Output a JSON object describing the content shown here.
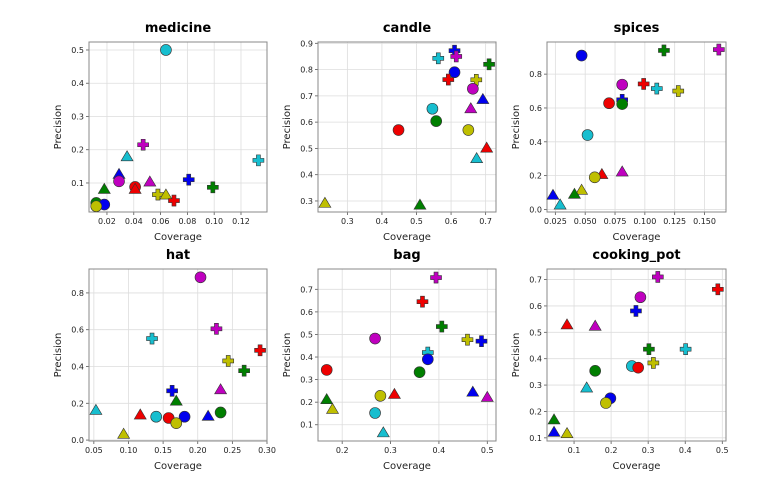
{
  "chart_data": [
    {
      "type": "scatter",
      "title": "medicine",
      "xlabel": "Coverage",
      "ylabel": "Precision",
      "xlim": [
        0.0066,
        0.1394
      ],
      "ylim": [
        0.0127,
        0.524
      ],
      "xticks": [
        0.02,
        0.04,
        0.06,
        0.08,
        0.1,
        0.12
      ],
      "xtick_labels": [
        "0.02",
        "0.04",
        "0.06",
        "0.08",
        "0.10",
        "0.12"
      ],
      "yticks": [
        0.1,
        0.2,
        0.3,
        0.4,
        0.5
      ],
      "ytick_labels": [
        "0.1",
        "0.2",
        "0.3",
        "0.4",
        "0.5"
      ],
      "grid": true,
      "points": [
        {
          "x": 0.064,
          "y": 0.5,
          "color": "#17becf",
          "shape": "circle"
        },
        {
          "x": 0.047,
          "y": 0.215,
          "color": "#bf00bf",
          "shape": "plus"
        },
        {
          "x": 0.035,
          "y": 0.178,
          "color": "#17becf",
          "shape": "triangle"
        },
        {
          "x": 0.133,
          "y": 0.168,
          "color": "#17becf",
          "shape": "plus"
        },
        {
          "x": 0.029,
          "y": 0.125,
          "color": "#0000ee",
          "shape": "triangle"
        },
        {
          "x": 0.081,
          "y": 0.11,
          "color": "#0000ee",
          "shape": "plus"
        },
        {
          "x": 0.029,
          "y": 0.105,
          "color": "#bf00bf",
          "shape": "circle"
        },
        {
          "x": 0.052,
          "y": 0.102,
          "color": "#bf00bf",
          "shape": "triangle"
        },
        {
          "x": 0.099,
          "y": 0.087,
          "color": "#007f00",
          "shape": "plus"
        },
        {
          "x": 0.041,
          "y": 0.088,
          "color": "#ee0000",
          "shape": "circle"
        },
        {
          "x": 0.041,
          "y": 0.08,
          "color": "#ee0000",
          "shape": "triangle"
        },
        {
          "x": 0.018,
          "y": 0.08,
          "color": "#007f00",
          "shape": "triangle"
        },
        {
          "x": 0.058,
          "y": 0.065,
          "color": "#bfbf00",
          "shape": "plus"
        },
        {
          "x": 0.064,
          "y": 0.063,
          "color": "#bfbf00",
          "shape": "triangle"
        },
        {
          "x": 0.07,
          "y": 0.047,
          "color": "#ee0000",
          "shape": "plus"
        },
        {
          "x": 0.012,
          "y": 0.04,
          "color": "#007f00",
          "shape": "circle"
        },
        {
          "x": 0.018,
          "y": 0.035,
          "color": "#0000ee",
          "shape": "circle"
        },
        {
          "x": 0.012,
          "y": 0.03,
          "color": "#bfbf00",
          "shape": "circle"
        }
      ]
    },
    {
      "type": "scatter",
      "title": "candle",
      "xlabel": "Coverage",
      "ylabel": "Precision",
      "xlim": [
        0.215,
        0.73
      ],
      "ylim": [
        0.258,
        0.905
      ],
      "xticks": [
        0.3,
        0.4,
        0.5,
        0.6,
        0.7
      ],
      "xtick_labels": [
        "0.3",
        "0.4",
        "0.5",
        "0.6",
        "0.7"
      ],
      "yticks": [
        0.3,
        0.4,
        0.5,
        0.6,
        0.7,
        0.8,
        0.9
      ],
      "ytick_labels": [
        "0.3",
        "0.4",
        "0.5",
        "0.6",
        "0.7",
        "0.8",
        "0.9"
      ],
      "grid": true,
      "points": [
        {
          "x": 0.61,
          "y": 0.872,
          "color": "#0000ee",
          "shape": "plus"
        },
        {
          "x": 0.615,
          "y": 0.85,
          "color": "#bf00bf",
          "shape": "plus"
        },
        {
          "x": 0.563,
          "y": 0.843,
          "color": "#17becf",
          "shape": "plus"
        },
        {
          "x": 0.71,
          "y": 0.82,
          "color": "#007f00",
          "shape": "plus"
        },
        {
          "x": 0.61,
          "y": 0.79,
          "color": "#0000ee",
          "shape": "circle"
        },
        {
          "x": 0.592,
          "y": 0.762,
          "color": "#ee0000",
          "shape": "plus"
        },
        {
          "x": 0.673,
          "y": 0.761,
          "color": "#bfbf00",
          "shape": "plus"
        },
        {
          "x": 0.663,
          "y": 0.727,
          "color": "#bf00bf",
          "shape": "circle"
        },
        {
          "x": 0.692,
          "y": 0.685,
          "color": "#0000ee",
          "shape": "triangle"
        },
        {
          "x": 0.546,
          "y": 0.651,
          "color": "#17becf",
          "shape": "circle"
        },
        {
          "x": 0.657,
          "y": 0.65,
          "color": "#bf00bf",
          "shape": "triangle"
        },
        {
          "x": 0.557,
          "y": 0.604,
          "color": "#007f00",
          "shape": "circle"
        },
        {
          "x": 0.448,
          "y": 0.57,
          "color": "#ee0000",
          "shape": "circle"
        },
        {
          "x": 0.65,
          "y": 0.57,
          "color": "#bfbf00",
          "shape": "circle"
        },
        {
          "x": 0.703,
          "y": 0.5,
          "color": "#ee0000",
          "shape": "triangle"
        },
        {
          "x": 0.674,
          "y": 0.46,
          "color": "#17becf",
          "shape": "triangle"
        },
        {
          "x": 0.235,
          "y": 0.29,
          "color": "#bfbf00",
          "shape": "triangle"
        },
        {
          "x": 0.51,
          "y": 0.283,
          "color": "#007f00",
          "shape": "triangle"
        }
      ]
    },
    {
      "type": "scatter",
      "title": "spices",
      "xlabel": "Coverage",
      "ylabel": "Precision",
      "xlim": [
        0.018,
        0.168
      ],
      "ylim": [
        -0.015,
        0.99
      ],
      "xticks": [
        0.025,
        0.05,
        0.075,
        0.1,
        0.125,
        0.15
      ],
      "xtick_labels": [
        "0.025",
        "0.050",
        "0.075",
        "0.100",
        "0.125",
        "0.150"
      ],
      "yticks": [
        0.0,
        0.2,
        0.4,
        0.6,
        0.8
      ],
      "ytick_labels": [
        "0.0",
        "0.2",
        "0.4",
        "0.6",
        "0.8"
      ],
      "grid": true,
      "points": [
        {
          "x": 0.162,
          "y": 0.945,
          "color": "#bf00bf",
          "shape": "plus"
        },
        {
          "x": 0.116,
          "y": 0.94,
          "color": "#007f00",
          "shape": "plus"
        },
        {
          "x": 0.047,
          "y": 0.91,
          "color": "#0000ee",
          "shape": "circle"
        },
        {
          "x": 0.099,
          "y": 0.742,
          "color": "#ee0000",
          "shape": "plus"
        },
        {
          "x": 0.081,
          "y": 0.738,
          "color": "#bf00bf",
          "shape": "circle"
        },
        {
          "x": 0.11,
          "y": 0.715,
          "color": "#17becf",
          "shape": "plus"
        },
        {
          "x": 0.128,
          "y": 0.7,
          "color": "#bfbf00",
          "shape": "plus"
        },
        {
          "x": 0.081,
          "y": 0.648,
          "color": "#0000ee",
          "shape": "plus"
        },
        {
          "x": 0.07,
          "y": 0.628,
          "color": "#ee0000",
          "shape": "circle"
        },
        {
          "x": 0.081,
          "y": 0.623,
          "color": "#007f00",
          "shape": "circle"
        },
        {
          "x": 0.052,
          "y": 0.44,
          "color": "#17becf",
          "shape": "circle"
        },
        {
          "x": 0.081,
          "y": 0.22,
          "color": "#bf00bf",
          "shape": "triangle"
        },
        {
          "x": 0.064,
          "y": 0.205,
          "color": "#ee0000",
          "shape": "triangle"
        },
        {
          "x": 0.058,
          "y": 0.19,
          "color": "#bfbf00",
          "shape": "circle"
        },
        {
          "x": 0.047,
          "y": 0.112,
          "color": "#bfbf00",
          "shape": "triangle"
        },
        {
          "x": 0.041,
          "y": 0.088,
          "color": "#007f00",
          "shape": "triangle"
        },
        {
          "x": 0.023,
          "y": 0.082,
          "color": "#0000ee",
          "shape": "triangle"
        },
        {
          "x": 0.029,
          "y": 0.025,
          "color": "#17becf",
          "shape": "triangle"
        }
      ]
    },
    {
      "type": "scatter",
      "title": "hat",
      "xlabel": "Coverage",
      "ylabel": "Precision",
      "xlim": [
        0.043,
        0.3
      ],
      "ylim": [
        -0.005,
        0.93
      ],
      "xticks": [
        0.05,
        0.1,
        0.15,
        0.2,
        0.25,
        0.3
      ],
      "xtick_labels": [
        "0.05",
        "0.10",
        "0.15",
        "0.20",
        "0.25",
        "0.30"
      ],
      "yticks": [
        0.0,
        0.2,
        0.4,
        0.6,
        0.8
      ],
      "ytick_labels": [
        "0.0",
        "0.2",
        "0.4",
        "0.6",
        "0.8"
      ],
      "grid": true,
      "points": [
        {
          "x": 0.204,
          "y": 0.885,
          "color": "#bf00bf",
          "shape": "circle"
        },
        {
          "x": 0.227,
          "y": 0.605,
          "color": "#bf00bf",
          "shape": "plus"
        },
        {
          "x": 0.134,
          "y": 0.552,
          "color": "#17becf",
          "shape": "plus"
        },
        {
          "x": 0.29,
          "y": 0.488,
          "color": "#ee0000",
          "shape": "plus"
        },
        {
          "x": 0.244,
          "y": 0.43,
          "color": "#bfbf00",
          "shape": "plus"
        },
        {
          "x": 0.267,
          "y": 0.377,
          "color": "#007f00",
          "shape": "plus"
        },
        {
          "x": 0.233,
          "y": 0.272,
          "color": "#bf00bf",
          "shape": "triangle"
        },
        {
          "x": 0.163,
          "y": 0.268,
          "color": "#0000ee",
          "shape": "plus"
        },
        {
          "x": 0.169,
          "y": 0.21,
          "color": "#007f00",
          "shape": "triangle"
        },
        {
          "x": 0.053,
          "y": 0.16,
          "color": "#17becf",
          "shape": "triangle"
        },
        {
          "x": 0.233,
          "y": 0.15,
          "color": "#007f00",
          "shape": "circle"
        },
        {
          "x": 0.117,
          "y": 0.135,
          "color": "#ee0000",
          "shape": "triangle"
        },
        {
          "x": 0.215,
          "y": 0.128,
          "color": "#0000ee",
          "shape": "triangle"
        },
        {
          "x": 0.14,
          "y": 0.127,
          "color": "#17becf",
          "shape": "circle"
        },
        {
          "x": 0.181,
          "y": 0.127,
          "color": "#0000ee",
          "shape": "circle"
        },
        {
          "x": 0.158,
          "y": 0.12,
          "color": "#ee0000",
          "shape": "circle"
        },
        {
          "x": 0.169,
          "y": 0.092,
          "color": "#bfbf00",
          "shape": "circle"
        },
        {
          "x": 0.093,
          "y": 0.03,
          "color": "#bfbf00",
          "shape": "triangle"
        }
      ]
    },
    {
      "type": "scatter",
      "title": "bag",
      "xlabel": "Coverage",
      "ylabel": "Precision",
      "xlim": [
        0.15,
        0.518
      ],
      "ylim": [
        0.028,
        0.79
      ],
      "xticks": [
        0.2,
        0.3,
        0.4,
        0.5
      ],
      "xtick_labels": [
        "0.2",
        "0.3",
        "0.4",
        "0.5"
      ],
      "yticks": [
        0.1,
        0.2,
        0.3,
        0.4,
        0.5,
        0.6,
        0.7
      ],
      "ytick_labels": [
        "0.1",
        "0.2",
        "0.3",
        "0.4",
        "0.5",
        "0.6",
        "0.7"
      ],
      "grid": true,
      "points": [
        {
          "x": 0.394,
          "y": 0.752,
          "color": "#bf00bf",
          "shape": "plus"
        },
        {
          "x": 0.366,
          "y": 0.645,
          "color": "#ee0000",
          "shape": "plus"
        },
        {
          "x": 0.406,
          "y": 0.535,
          "color": "#007f00",
          "shape": "plus"
        },
        {
          "x": 0.268,
          "y": 0.482,
          "color": "#bf00bf",
          "shape": "circle"
        },
        {
          "x": 0.459,
          "y": 0.477,
          "color": "#bfbf00",
          "shape": "plus"
        },
        {
          "x": 0.488,
          "y": 0.47,
          "color": "#0000ee",
          "shape": "plus"
        },
        {
          "x": 0.377,
          "y": 0.42,
          "color": "#17becf",
          "shape": "plus"
        },
        {
          "x": 0.377,
          "y": 0.39,
          "color": "#0000ee",
          "shape": "circle"
        },
        {
          "x": 0.168,
          "y": 0.343,
          "color": "#ee0000",
          "shape": "circle"
        },
        {
          "x": 0.36,
          "y": 0.333,
          "color": "#007f00",
          "shape": "circle"
        },
        {
          "x": 0.47,
          "y": 0.243,
          "color": "#0000ee",
          "shape": "triangle"
        },
        {
          "x": 0.308,
          "y": 0.233,
          "color": "#ee0000",
          "shape": "triangle"
        },
        {
          "x": 0.279,
          "y": 0.228,
          "color": "#bfbf00",
          "shape": "circle"
        },
        {
          "x": 0.5,
          "y": 0.22,
          "color": "#bf00bf",
          "shape": "triangle"
        },
        {
          "x": 0.168,
          "y": 0.21,
          "color": "#007f00",
          "shape": "triangle"
        },
        {
          "x": 0.18,
          "y": 0.167,
          "color": "#bfbf00",
          "shape": "triangle"
        },
        {
          "x": 0.268,
          "y": 0.152,
          "color": "#17becf",
          "shape": "circle"
        },
        {
          "x": 0.285,
          "y": 0.063,
          "color": "#17becf",
          "shape": "triangle"
        }
      ]
    },
    {
      "type": "scatter",
      "title": "cooking_pot",
      "xlabel": "Coverage",
      "ylabel": "Precision",
      "xlim": [
        0.027,
        0.51
      ],
      "ylim": [
        0.088,
        0.74
      ],
      "xticks": [
        0.1,
        0.2,
        0.3,
        0.4,
        0.5
      ],
      "xtick_labels": [
        "0.1",
        "0.2",
        "0.3",
        "0.4",
        "0.5"
      ],
      "yticks": [
        0.1,
        0.2,
        0.3,
        0.4,
        0.5,
        0.6,
        0.7
      ],
      "ytick_labels": [
        "0.1",
        "0.2",
        "0.3",
        "0.4",
        "0.5",
        "0.6",
        "0.7"
      ],
      "grid": true,
      "points": [
        {
          "x": 0.326,
          "y": 0.71,
          "color": "#bf00bf",
          "shape": "plus"
        },
        {
          "x": 0.488,
          "y": 0.663,
          "color": "#ee0000",
          "shape": "plus"
        },
        {
          "x": 0.279,
          "y": 0.633,
          "color": "#bf00bf",
          "shape": "circle"
        },
        {
          "x": 0.267,
          "y": 0.581,
          "color": "#0000ee",
          "shape": "plus"
        },
        {
          "x": 0.081,
          "y": 0.527,
          "color": "#ee0000",
          "shape": "triangle"
        },
        {
          "x": 0.157,
          "y": 0.522,
          "color": "#bf00bf",
          "shape": "triangle"
        },
        {
          "x": 0.302,
          "y": 0.436,
          "color": "#007f00",
          "shape": "plus"
        },
        {
          "x": 0.401,
          "y": 0.436,
          "color": "#17becf",
          "shape": "plus"
        },
        {
          "x": 0.314,
          "y": 0.384,
          "color": "#bfbf00",
          "shape": "plus"
        },
        {
          "x": 0.256,
          "y": 0.372,
          "color": "#17becf",
          "shape": "circle"
        },
        {
          "x": 0.273,
          "y": 0.366,
          "color": "#ee0000",
          "shape": "circle"
        },
        {
          "x": 0.157,
          "y": 0.354,
          "color": "#007f00",
          "shape": "circle"
        },
        {
          "x": 0.134,
          "y": 0.288,
          "color": "#17becf",
          "shape": "triangle"
        },
        {
          "x": 0.198,
          "y": 0.25,
          "color": "#0000ee",
          "shape": "circle"
        },
        {
          "x": 0.186,
          "y": 0.232,
          "color": "#bfbf00",
          "shape": "circle"
        },
        {
          "x": 0.046,
          "y": 0.167,
          "color": "#007f00",
          "shape": "triangle"
        },
        {
          "x": 0.046,
          "y": 0.12,
          "color": "#0000ee",
          "shape": "triangle"
        },
        {
          "x": 0.081,
          "y": 0.115,
          "color": "#bfbf00",
          "shape": "triangle"
        }
      ]
    }
  ]
}
